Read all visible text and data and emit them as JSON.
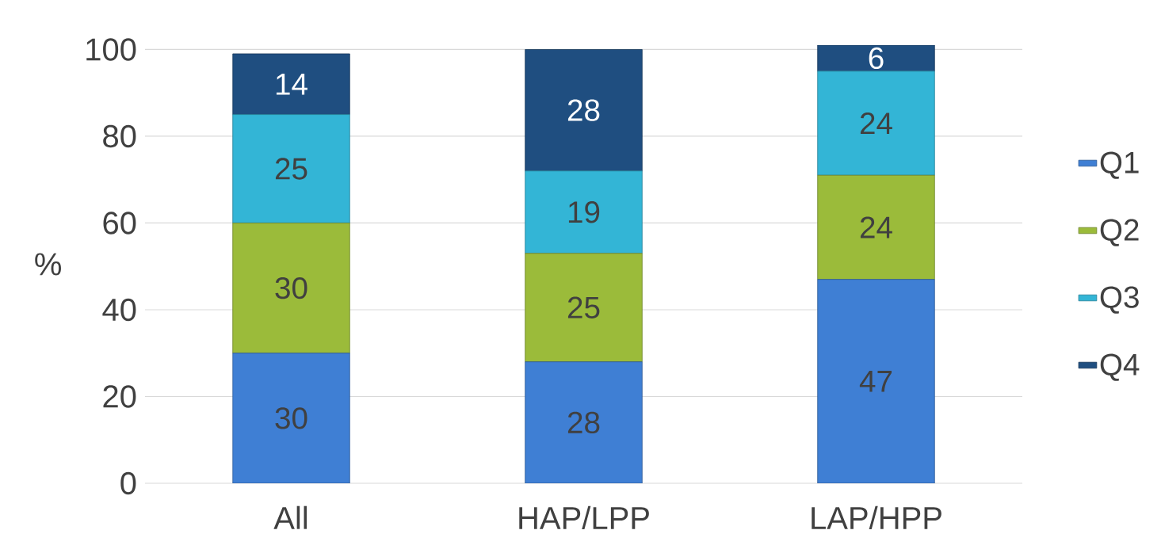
{
  "chart_data": {
    "type": "bar",
    "stacked": true,
    "ylabel": "%",
    "categories": [
      "All",
      "HAP/LPP",
      "LAP/HPP"
    ],
    "series": [
      {
        "name": "Q1",
        "color": "#3f7fd4",
        "values": [
          30,
          28,
          47
        ]
      },
      {
        "name": "Q2",
        "color": "#9bbb3a",
        "values": [
          30,
          25,
          24
        ]
      },
      {
        "name": "Q3",
        "color": "#33b5d6",
        "values": [
          25,
          19,
          24
        ]
      },
      {
        "name": "Q4",
        "color": "#1f4e80",
        "values": [
          14,
          28,
          6
        ]
      }
    ],
    "ylim": [
      0,
      101
    ],
    "yticks": [
      0,
      20,
      40,
      60,
      80,
      100
    ],
    "grid": "y",
    "legend": "right",
    "data_labels": true
  }
}
